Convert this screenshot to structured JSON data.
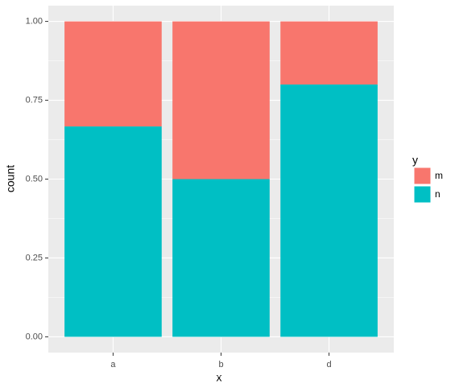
{
  "chart_data": {
    "type": "bar",
    "stacked": true,
    "x_label": "x",
    "y_label": "count",
    "legend_title": "y",
    "categories": [
      "a",
      "b",
      "d"
    ],
    "series": [
      {
        "name": "m",
        "color": "#f8766d",
        "values": [
          0.333,
          0.5,
          0.2
        ]
      },
      {
        "name": "n",
        "color": "#00bfc4",
        "values": [
          0.667,
          0.5,
          0.8
        ]
      }
    ],
    "ylim": [
      -0.05,
      1.05
    ],
    "yticks": [
      {
        "value": 0,
        "label": "0.00"
      },
      {
        "value": 0.25,
        "label": "0.25"
      },
      {
        "value": 0.5,
        "label": "0.50"
      },
      {
        "value": 0.75,
        "label": "0.75"
      },
      {
        "value": 1,
        "label": "1.00"
      }
    ],
    "grid": true,
    "legend": "right"
  }
}
